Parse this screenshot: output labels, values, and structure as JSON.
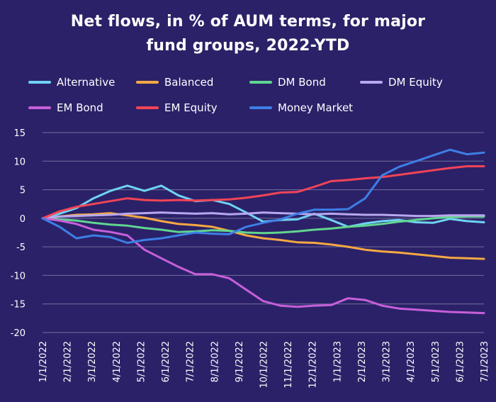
{
  "chart_data": {
    "type": "line",
    "title_line1": "Net flows, in % of AUM terms, for major",
    "title_line2": "fund groups, 2022-YTD",
    "xlabel": "",
    "ylabel": "",
    "ylim": [
      -20,
      15
    ],
    "yticks": [
      "15",
      "10",
      "5",
      "0",
      "-5",
      "-10",
      "-15",
      "-20"
    ],
    "ytick_values": [
      15,
      10,
      5,
      0,
      -5,
      -10,
      -15,
      -20
    ],
    "xticks": [
      "1/1/2022",
      "2/1/2022",
      "3/1/2022",
      "4/1/2022",
      "5/1/2022",
      "6/1/2022",
      "7/1/2022",
      "8/1/2022",
      "9/1/2022",
      "10/1/2022",
      "11/1/2022",
      "12/1/2022",
      "1/1/2023",
      "2/1/2023",
      "3/1/2023",
      "4/1/2023",
      "5/1/2023",
      "6/1/2023",
      "7/1/2023"
    ],
    "grid": "horizontal",
    "legend_position": "top",
    "series": [
      {
        "name": "Alternative",
        "color": "#6fd3f2",
        "values": [
          0,
          0.8,
          1.8,
          3.5,
          4.8,
          5.7,
          4.8,
          5.7,
          4.0,
          3.0,
          3.2,
          2.5,
          1.0,
          -0.6,
          -0.3,
          -0.2,
          0.8,
          -0.3,
          -1.5,
          -0.9,
          -0.5,
          -0.3,
          -0.7,
          -0.8,
          -0.1,
          -0.5,
          -0.7
        ]
      },
      {
        "name": "Balanced",
        "color": "#f5a843",
        "values": [
          0,
          0.3,
          0.6,
          0.7,
          0.9,
          0.5,
          0.1,
          -0.5,
          -1.0,
          -1.2,
          -1.5,
          -2.2,
          -3.0,
          -3.5,
          -3.8,
          -4.2,
          -4.3,
          -4.6,
          -5.0,
          -5.5,
          -5.8,
          -6.0,
          -6.3,
          -6.6,
          -6.9,
          -7.0,
          -7.1
        ]
      },
      {
        "name": "DM Bond",
        "color": "#5fd68f",
        "values": [
          0,
          -0.2,
          -0.4,
          -0.8,
          -1.1,
          -1.3,
          -1.7,
          -2.0,
          -2.4,
          -2.3,
          -2.1,
          -2.2,
          -2.5,
          -2.6,
          -2.5,
          -2.3,
          -2.0,
          -1.8,
          -1.5,
          -1.3,
          -1.0,
          -0.6,
          -0.3,
          0.0,
          0.2,
          0.3,
          0.3
        ]
      },
      {
        "name": "DM Equity",
        "color": "#b8a8ee",
        "values": [
          0,
          0.3,
          0.4,
          0.5,
          0.6,
          0.8,
          0.9,
          1.0,
          0.9,
          0.8,
          0.9,
          0.7,
          0.8,
          1.0,
          0.9,
          0.8,
          0.7,
          0.8,
          0.7,
          0.6,
          0.6,
          0.5,
          0.4,
          0.4,
          0.5,
          0.5,
          0.5
        ]
      },
      {
        "name": "EM Bond",
        "color": "#c65fd9",
        "values": [
          0,
          -0.4,
          -1.0,
          -2.0,
          -2.4,
          -3.0,
          -5.5,
          -7.0,
          -8.5,
          -9.8,
          -9.8,
          -10.5,
          -12.5,
          -14.5,
          -15.3,
          -15.5,
          -15.3,
          -15.2,
          -14.0,
          -14.3,
          -15.3,
          -15.8,
          -16.0,
          -16.2,
          -16.4,
          -16.5,
          -16.6
        ]
      },
      {
        "name": "EM Equity",
        "color": "#f24457",
        "values": [
          0,
          1.2,
          2.0,
          2.5,
          3.0,
          3.5,
          3.2,
          3.1,
          3.2,
          3.1,
          3.2,
          3.3,
          3.6,
          4.0,
          4.5,
          4.6,
          5.5,
          6.5,
          6.7,
          7.0,
          7.2,
          7.6,
          8.0,
          8.4,
          8.8,
          9.1,
          9.1
        ]
      },
      {
        "name": "Money Market",
        "color": "#3d7fe6",
        "values": [
          0,
          -1.5,
          -3.5,
          -3.0,
          -3.3,
          -4.3,
          -3.8,
          -3.5,
          -3.0,
          -2.5,
          -2.7,
          -2.8,
          -1.5,
          -0.8,
          -0.2,
          0.8,
          1.5,
          1.5,
          1.6,
          3.5,
          7.5,
          9.0,
          10.0,
          11.0,
          12.0,
          11.2,
          11.5
        ]
      }
    ]
  }
}
